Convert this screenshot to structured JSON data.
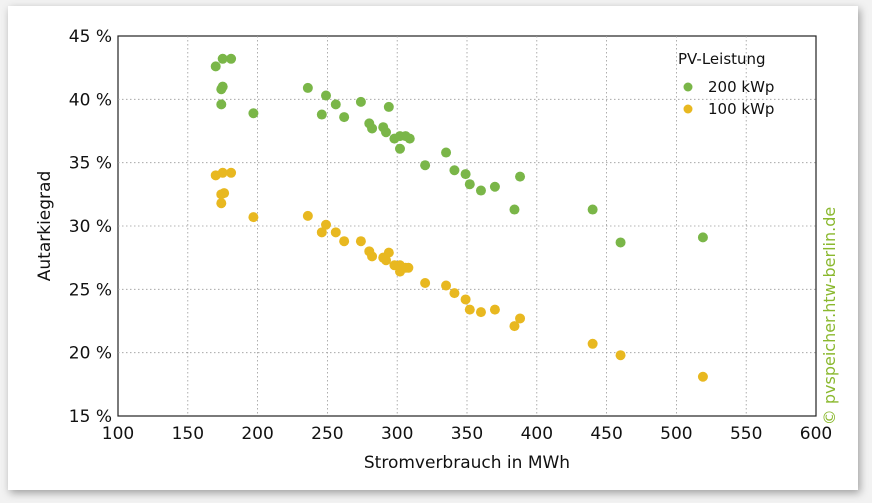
{
  "chart_data": {
    "type": "scatter",
    "xlabel": "Stromverbrauch in MWh",
    "ylabel": "Autarkiegrad",
    "xlim": [
      100,
      600
    ],
    "ylim": [
      15,
      45
    ],
    "xticks": [
      100,
      150,
      200,
      250,
      300,
      350,
      400,
      450,
      500,
      550,
      600
    ],
    "yticks": [
      15,
      20,
      25,
      30,
      35,
      40,
      45
    ],
    "ytick_labels": [
      "15 %",
      "20 %",
      "25 %",
      "30 %",
      "35 %",
      "40 %",
      "45 %"
    ],
    "grid": true,
    "legend": {
      "title": "PV-Leistung",
      "placement": "top-right"
    },
    "series": [
      {
        "name": "200 kWp",
        "color": "#7ab648",
        "points": [
          [
            170,
            42.6
          ],
          [
            175,
            43.2
          ],
          [
            181,
            43.2
          ],
          [
            174,
            40.8
          ],
          [
            175,
            41.0
          ],
          [
            174,
            39.6
          ],
          [
            197,
            38.9
          ],
          [
            236,
            40.9
          ],
          [
            246,
            38.8
          ],
          [
            249,
            40.3
          ],
          [
            256,
            39.6
          ],
          [
            262,
            38.6
          ],
          [
            274,
            39.8
          ],
          [
            280,
            38.1
          ],
          [
            282,
            37.7
          ],
          [
            290,
            37.8
          ],
          [
            292,
            37.4
          ],
          [
            294,
            39.4
          ],
          [
            298,
            36.9
          ],
          [
            302,
            37.1
          ],
          [
            302,
            36.1
          ],
          [
            306,
            37.1
          ],
          [
            309,
            36.9
          ],
          [
            320,
            34.8
          ],
          [
            335,
            35.8
          ],
          [
            341,
            34.4
          ],
          [
            349,
            34.1
          ],
          [
            352,
            33.3
          ],
          [
            360,
            32.8
          ],
          [
            370,
            33.1
          ],
          [
            384,
            31.3
          ],
          [
            388,
            33.9
          ],
          [
            440,
            31.3
          ],
          [
            460,
            28.7
          ],
          [
            519,
            29.1
          ]
        ]
      },
      {
        "name": "100 kWp",
        "color": "#e8b820",
        "points": [
          [
            170,
            34.0
          ],
          [
            175,
            34.2
          ],
          [
            181,
            34.2
          ],
          [
            174,
            32.5
          ],
          [
            176,
            32.6
          ],
          [
            174,
            31.8
          ],
          [
            197,
            30.7
          ],
          [
            236,
            30.8
          ],
          [
            246,
            29.5
          ],
          [
            249,
            30.1
          ],
          [
            256,
            29.5
          ],
          [
            262,
            28.8
          ],
          [
            274,
            28.8
          ],
          [
            280,
            28.0
          ],
          [
            282,
            27.6
          ],
          [
            290,
            27.5
          ],
          [
            292,
            27.3
          ],
          [
            294,
            27.9
          ],
          [
            298,
            26.9
          ],
          [
            302,
            26.9
          ],
          [
            302,
            26.4
          ],
          [
            306,
            26.7
          ],
          [
            308,
            26.7
          ],
          [
            320,
            25.5
          ],
          [
            335,
            25.3
          ],
          [
            341,
            24.7
          ],
          [
            349,
            24.2
          ],
          [
            352,
            23.4
          ],
          [
            360,
            23.2
          ],
          [
            370,
            23.4
          ],
          [
            384,
            22.1
          ],
          [
            388,
            22.7
          ],
          [
            440,
            20.7
          ],
          [
            460,
            19.8
          ],
          [
            519,
            18.1
          ]
        ]
      }
    ]
  },
  "watermark": {
    "text": "© pvspeicher.htw-berlin.de",
    "color": "#8ab82e"
  }
}
